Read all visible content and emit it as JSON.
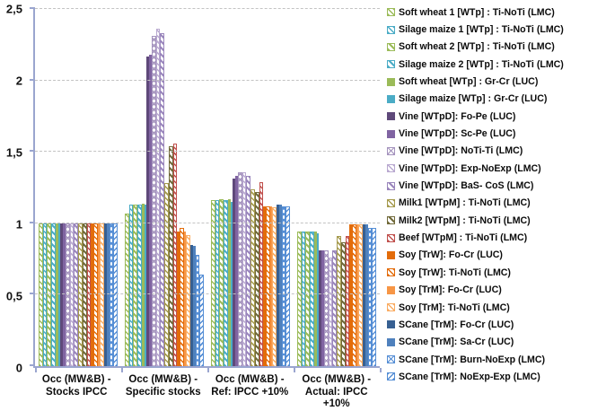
{
  "chart_data": {
    "type": "bar",
    "title": "",
    "xlabel": "",
    "ylabel": "",
    "ylim": [
      0,
      2.5
    ],
    "grid": "horizontal-dashed",
    "legend_position": "right",
    "yticks": [
      {
        "label": "0",
        "value": 0
      },
      {
        "label": "0,5",
        "value": 0.5
      },
      {
        "label": "1",
        "value": 1
      },
      {
        "label": "1,5",
        "value": 1.5
      },
      {
        "label": "2",
        "value": 2
      },
      {
        "label": "2,5",
        "value": 2.5
      }
    ],
    "categories": [
      {
        "line1": "Occ (MW&B) -",
        "line2": "Stocks IPCC"
      },
      {
        "line1": "Occ (MW&B) -",
        "line2": "Specific stocks"
      },
      {
        "line1": "Occ (MW&B) -",
        "line2": "Ref: IPCC +10%"
      },
      {
        "line1": "Occ (MW&B) -",
        "line2": "Actual: IPCC +10%"
      }
    ],
    "series": [
      {
        "name": "Soft wheat 1 [WTp] : Ti-NoTi (LMC)",
        "color": "#9BBB59",
        "pattern": "diag",
        "values": [
          1,
          1.07,
          1.16,
          0.94
        ]
      },
      {
        "name": "Silage maize 1 [WTp] : Ti-NoTi (LMC)",
        "color": "#4BACC6",
        "pattern": "diag",
        "values": [
          1,
          1.13,
          1.16,
          0.94
        ]
      },
      {
        "name": "Soft wheat 2 [WTp] : Ti-NoTi (LMC)",
        "color": "#9BBB59",
        "pattern": "diag2",
        "values": [
          1,
          1.13,
          1.17,
          0.94
        ]
      },
      {
        "name": "Silage maize 2 [WTp] : Ti-NoTi (LMC)",
        "color": "#4BACC6",
        "pattern": "diag2",
        "values": [
          1,
          1.13,
          1.16,
          0.94
        ]
      },
      {
        "name": "Soft wheat [WTp] : Gr-Cr (LUC)",
        "color": "#9BBB59",
        "pattern": "solid",
        "values": [
          1,
          1.14,
          1.17,
          0.94
        ]
      },
      {
        "name": "Silage maize [WTp] : Gr-Cr (LUC)",
        "color": "#4BACC6",
        "pattern": "solid",
        "values": [
          1,
          1.13,
          1.15,
          0.93
        ]
      },
      {
        "name": "Vine [WTpD]: Fo-Pe (LUC)",
        "color": "#5F497A",
        "pattern": "solid",
        "values": [
          1,
          2.17,
          1.31,
          0.81
        ]
      },
      {
        "name": "Vine [WTpD]: Sc-Pe (LUC)",
        "color": "#8064A2",
        "pattern": "solid",
        "values": [
          1,
          2.18,
          1.33,
          0.81
        ]
      },
      {
        "name": "Vine [WTpD]: NoTi-Ti (LMC)",
        "color": "#A594BE",
        "pattern": "chev",
        "values": [
          1,
          2.31,
          1.36,
          0.81
        ]
      },
      {
        "name": "Vine [WTpD]: Exp-NoExp (LMC)",
        "color": "#B9A9D0",
        "pattern": "diag",
        "values": [
          1,
          2.36,
          1.36,
          0.76
        ]
      },
      {
        "name": "Vine [WTpD]: BaS- CoS (LMC)",
        "color": "#9A86BC",
        "pattern": "diag2",
        "values": [
          1,
          2.33,
          1.33,
          0.81
        ]
      },
      {
        "name": "Milk1 [WTpM] : Ti-NoTi (LMC)",
        "color": "#A59A4D",
        "pattern": "diag",
        "values": [
          1,
          1.28,
          1.24,
          0.91
        ]
      },
      {
        "name": "Milk2 [WTpM] : Ti-NoTi (LMC)",
        "color": "#716A3A",
        "pattern": "diag2",
        "values": [
          1,
          1.54,
          1.22,
          0.87
        ]
      },
      {
        "name": "Beef [WTpM] : Ti-NoTi (LMC)",
        "color": "#C0504D",
        "pattern": "diag",
        "values": [
          1,
          1.56,
          1.29,
          0.91
        ]
      },
      {
        "name": "Soy [TrW]: Fo-Cr (LUC)",
        "color": "#E36C0A",
        "pattern": "solid",
        "values": [
          1,
          0.94,
          1.12,
          0.99
        ]
      },
      {
        "name": "Soy [TrW]: Ti-NoTi (LMC)",
        "color": "#E36C0A",
        "pattern": "diag",
        "values": [
          1,
          0.97,
          1.12,
          0.99
        ]
      },
      {
        "name": "Soy [TrM]: Fo-Cr (LUC)",
        "color": "#F79646",
        "pattern": "solid",
        "values": [
          1,
          0.94,
          1.12,
          0.99
        ]
      },
      {
        "name": "Soy [TrM]: Ti-NoTi (LMC)",
        "color": "#FAAC62",
        "pattern": "diag",
        "values": [
          1,
          0.92,
          1.11,
          0.99
        ]
      },
      {
        "name": "SCane [TrM]: Fo-Cr (LUC)",
        "color": "#376092",
        "pattern": "solid",
        "values": [
          1,
          0.85,
          1.13,
          0.99
        ]
      },
      {
        "name": "SCane [TrM]: Sa-Cr (LUC)",
        "color": "#4F81BD",
        "pattern": "solid",
        "values": [
          1,
          0.84,
          1.13,
          0.99
        ]
      },
      {
        "name": "SCane [TrM]: Burn-NoExp (LMC)",
        "color": "#558ED5",
        "pattern": "chev",
        "values": [
          1,
          0.78,
          1.12,
          0.97
        ]
      },
      {
        "name": "SCane [TrM]: NoExp-Exp (LMC)",
        "color": "#558ED5",
        "pattern": "bdiag",
        "values": [
          1,
          0.64,
          1.12,
          0.97
        ]
      }
    ]
  }
}
